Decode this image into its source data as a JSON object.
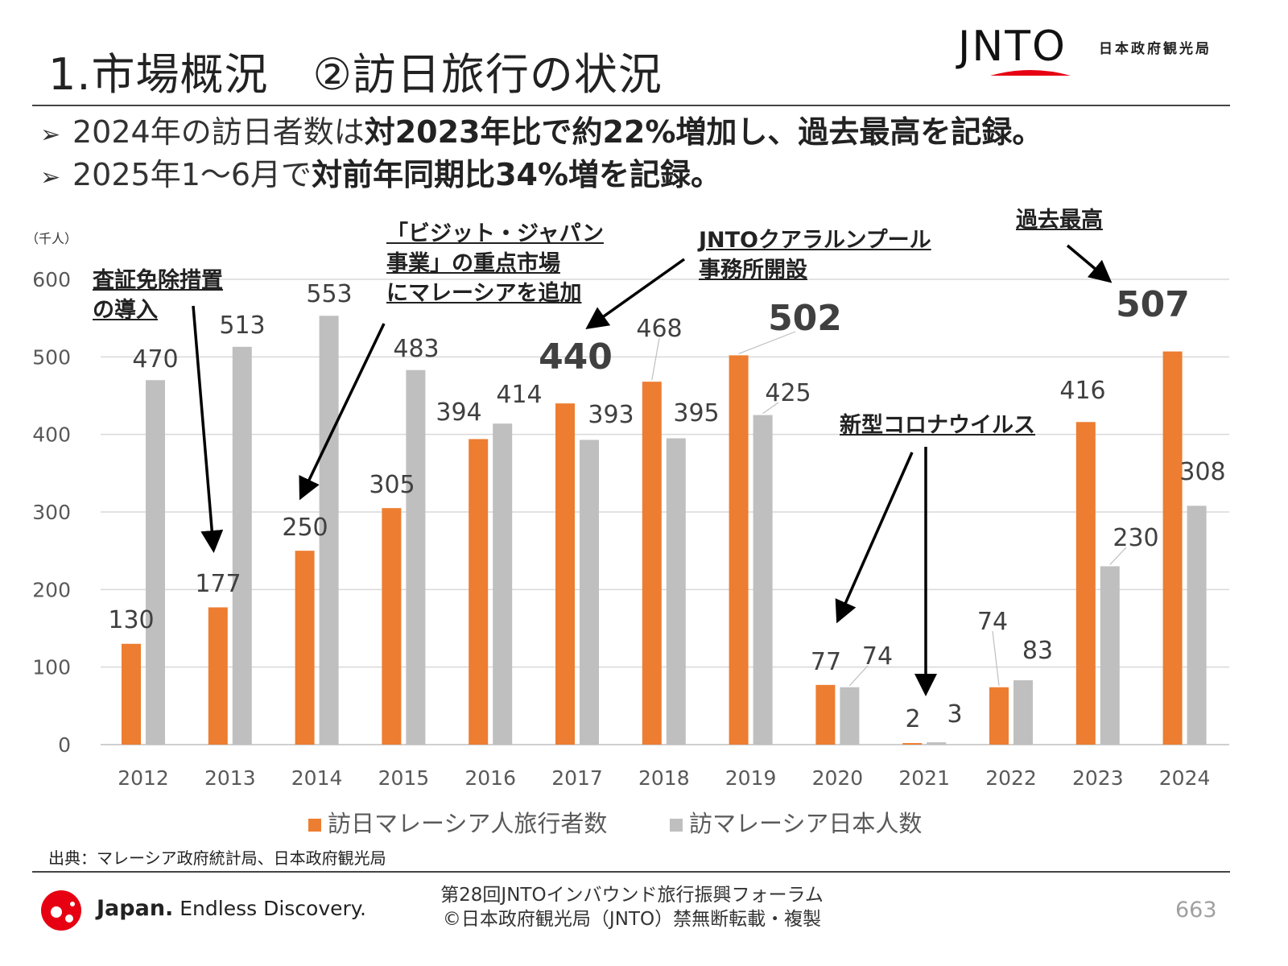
{
  "header": {
    "title": "1.市場概況　②訪日旅行の状況",
    "logo_text": "JNTO",
    "logo_subtitle": "日本政府観光局"
  },
  "bullets": [
    {
      "mark": "➢",
      "normal": "2024年の訪日者数は",
      "bold": "対2023年比で約22%増加し、過去最高を記録。"
    },
    {
      "mark": "➢",
      "normal": "2025年1～6月で",
      "bold": "対前年同期比34%増を記録。"
    }
  ],
  "chart_data": {
    "type": "bar",
    "title": "",
    "unit_label": "（千人）",
    "xlabel": "",
    "ylabel": "",
    "ylim": [
      0,
      600
    ],
    "yticks": [
      0,
      100,
      200,
      300,
      400,
      500,
      600
    ],
    "grid": true,
    "legend_position": "bottom",
    "categories": [
      "2012",
      "2013",
      "2014",
      "2015",
      "2016",
      "2017",
      "2018",
      "2019",
      "2020",
      "2021",
      "2022",
      "2023",
      "2024"
    ],
    "series": [
      {
        "name": "訪日マレーシア人旅行者数",
        "color": "#ED7D31",
        "values": [
          130,
          177,
          250,
          305,
          394,
          440,
          468,
          502,
          77,
          2,
          74,
          416,
          507
        ]
      },
      {
        "name": "訪マレーシア日本人数",
        "color": "#BFBFBF",
        "values": [
          470,
          513,
          553,
          483,
          414,
          393,
          395,
          425,
          74,
          3,
          83,
          230,
          308
        ]
      }
    ],
    "annotations": [
      {
        "text": "査証免除措置\nの導入"
      },
      {
        "text": "「ビジット・ジャパン\n事業」の重点市場\nにマレーシアを追加"
      },
      {
        "text": "JNTOクアラルンプール\n事務所開設"
      },
      {
        "text": "過去最高"
      },
      {
        "text": "新型コロナウイルス"
      }
    ]
  },
  "source": "出典：マレーシア政府統計局、日本政府観光局",
  "footer": {
    "line1": "第28回JNTOインバウンド旅行振興フォーラム",
    "line2": "©日本政府観光局（JNTO）禁無断転載・複製",
    "brand_bold": "Japan.",
    "brand_tagline": "Endless Discovery.",
    "page_number": "663"
  }
}
